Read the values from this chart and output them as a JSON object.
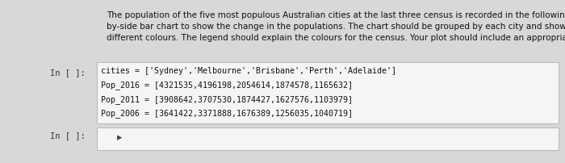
{
  "description_text": "The population of the five most populous Australian cities at the last three census is recorded in the following cell. Plot a side-\nby-side bar chart to show the change in the populations. The chart should be grouped by each city and show each census in\ndifferent colours. The legend should explain the colours for the census. Your plot should include an appropriate title.",
  "code_line1": "cities = ['Sydney','Melbourne','Brisbane','Perth','Adelaide']",
  "code_line2": "Pop_2016 = [4321535,4196198,2054614,1874578,1165632]",
  "code_line3": "Pop_2011 = [3908642,3707530,1874427,1627576,1103979]",
  "code_line4": "Pop_2006 = [3641422,3371888,1676389,1256035,1040719]",
  "label_in1": "In [ ]:",
  "label_in2": "In [ ]:",
  "bg_color": "#d8d8d8",
  "cell_bg": "#f5f5f5",
  "border_color": "#bbbbbb",
  "text_color": "#111111",
  "label_color": "#333333",
  "code_color": "#111111",
  "desc_fontsize": 7.5,
  "code_fontsize": 7.2,
  "label_fontsize": 7.5
}
